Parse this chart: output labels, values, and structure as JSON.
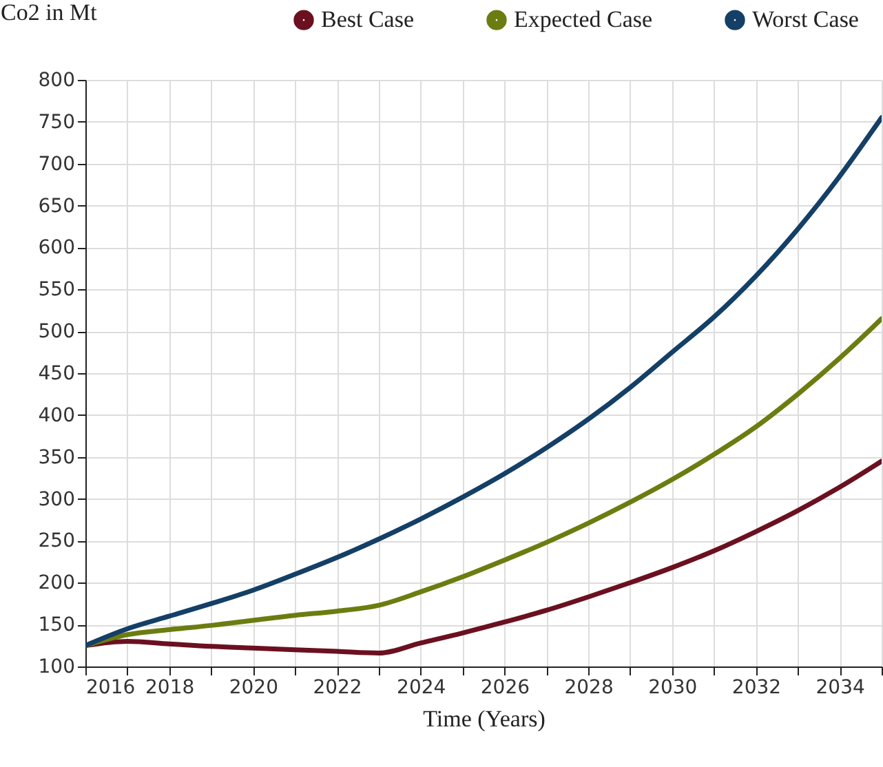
{
  "chart_data": {
    "type": "line",
    "ylabel": "Co2 in Mt",
    "xlabel": "Time (Years)",
    "x": [
      2016,
      2017,
      2018,
      2019,
      2020,
      2021,
      2022,
      2023,
      2024,
      2025,
      2026,
      2027,
      2028,
      2029,
      2030,
      2031,
      2032,
      2033,
      2034,
      2035
    ],
    "series": [
      {
        "name": "Best Case",
        "color": "#6b1020",
        "values": [
          125,
          130,
          127,
          124,
          122,
          120,
          118,
          116,
          128,
          140,
          153,
          167,
          183,
          200,
          218,
          238,
          261,
          286,
          314,
          345
        ]
      },
      {
        "name": "Expected Case",
        "color": "#6b7d10",
        "values": [
          125,
          138,
          144,
          149,
          155,
          161,
          166,
          173,
          189,
          207,
          227,
          248,
          271,
          296,
          323,
          353,
          386,
          425,
          468,
          515
        ]
      },
      {
        "name": "Worst Case",
        "color": "#143f66",
        "values": [
          125,
          145,
          160,
          175,
          191,
          210,
          230,
          252,
          276,
          302,
          330,
          361,
          395,
          433,
          475,
          517,
          566,
          622,
          685,
          755
        ]
      }
    ],
    "xlim": [
      2016,
      2035
    ],
    "xticks": [
      2016,
      {
        "value": 2017,
        "label": null
      },
      2018,
      {
        "value": 2019,
        "label": null
      },
      2020,
      {
        "value": 2021,
        "label": null
      },
      2022,
      {
        "value": 2023,
        "label": null
      },
      2024,
      {
        "value": 2025,
        "label": null
      },
      2026,
      {
        "value": 2027,
        "label": null
      },
      2028,
      {
        "value": 2029,
        "label": null
      },
      2030,
      {
        "value": 2031,
        "label": null
      },
      2032,
      {
        "value": 2033,
        "label": null
      },
      2034,
      {
        "value": 2035,
        "label": null
      }
    ],
    "ylim": [
      100,
      800
    ],
    "yticks": [
      100,
      150,
      200,
      250,
      300,
      350,
      400,
      450,
      500,
      550,
      600,
      650,
      700,
      750,
      800
    ],
    "grid": true,
    "legend": "top",
    "marker": "none",
    "line_style": "solid"
  }
}
